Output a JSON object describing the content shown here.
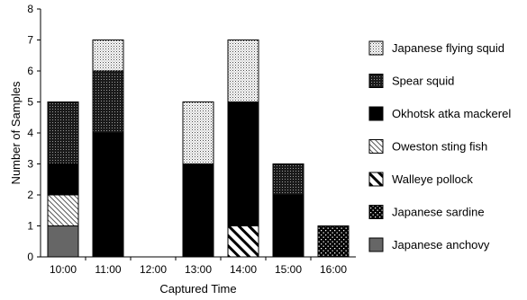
{
  "chart_data": {
    "type": "bar",
    "stacked": true,
    "title": "",
    "xlabel": "Captured Time",
    "ylabel": "Number of Samples",
    "ylim": [
      0,
      8
    ],
    "yticks": [
      0,
      1,
      2,
      3,
      4,
      5,
      6,
      7,
      8
    ],
    "grid": false,
    "legend_position": "right",
    "categories": [
      "10:00",
      "11:00",
      "12:00",
      "13:00",
      "14:00",
      "15:00",
      "16:00"
    ],
    "series": [
      {
        "name": "Japanese anchovy",
        "pattern": "solid-gray",
        "color": "#666666",
        "values": [
          1,
          0,
          0,
          0,
          0,
          0,
          0
        ]
      },
      {
        "name": "Japanese sardine",
        "pattern": "dots-on-black",
        "color": "#000000",
        "values": [
          0,
          0,
          0,
          0,
          0,
          0,
          1
        ]
      },
      {
        "name": "Walleye pollock",
        "pattern": "wide-diagonal",
        "color": "#000000",
        "values": [
          0,
          0,
          0,
          0,
          1,
          0,
          0
        ]
      },
      {
        "name": "Oweston sting fish",
        "pattern": "fine-diagonal",
        "color": "#555555",
        "values": [
          1,
          0,
          0,
          0,
          0,
          0,
          0
        ]
      },
      {
        "name": "Okhotsk atka mackerel",
        "pattern": "solid-black",
        "color": "#000000",
        "values": [
          1,
          4,
          0,
          3,
          4,
          2,
          0
        ]
      },
      {
        "name": "Spear squid",
        "pattern": "dense-dots",
        "color": "#222222",
        "values": [
          2,
          2,
          0,
          0,
          0,
          1,
          0
        ]
      },
      {
        "name": "Japanese flying squid",
        "pattern": "light-dots",
        "color": "#bbbbbb",
        "values": [
          0,
          1,
          0,
          2,
          2,
          0,
          0
        ]
      }
    ],
    "legend_order": [
      "Japanese flying squid",
      "Spear squid",
      "Okhotsk atka mackerel",
      "Oweston sting fish",
      "Walleye pollock",
      "Japanese sardine",
      "Japanese anchovy"
    ]
  }
}
